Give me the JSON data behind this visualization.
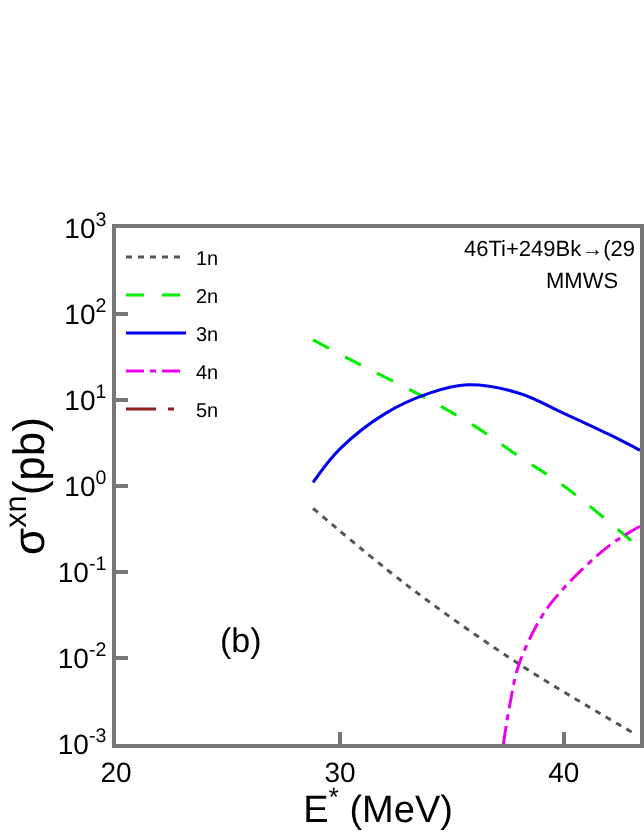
{
  "chart_data": {
    "type": "line",
    "xlabel": "E$^{*}$ (MeV)",
    "ylabel": "σ$^{xn}$(pb)",
    "log": "y",
    "xlim": [
      20,
      43.4
    ],
    "xticks": [
      20,
      30,
      40
    ],
    "ylim": [
      0.001,
      1000
    ],
    "yticks": [
      {
        "value": 0.001,
        "label": "10$^{-3}$"
      },
      {
        "value": 0.01,
        "label": "10$^{-2}$"
      },
      {
        "value": 0.1,
        "label": "10$^{-1}$"
      },
      {
        "value": 1,
        "label": "10$^{0}$"
      },
      {
        "value": 10,
        "label": "10$^{1}$"
      },
      {
        "value": 100,
        "label": "10$^{2}$"
      },
      {
        "value": 1000,
        "label": "10$^{3}$"
      }
    ],
    "legend": "top left",
    "annotations": [
      "46Ti+249Bk→(29",
      "MMWS",
      "(b)"
    ],
    "series": [
      {
        "name": "1n",
        "color": "#555555",
        "line_style": "dotted",
        "x": [
          28.8,
          33,
          38,
          43.2
        ],
        "values": [
          0.55,
          0.07,
          0.0085,
          0.0013
        ]
      },
      {
        "name": "2n",
        "color": "#00ee00",
        "line_style": "dashed",
        "x": [
          28.8,
          31,
          33.7,
          36,
          38,
          40,
          43.4
        ],
        "values": [
          50,
          25,
          11,
          5,
          2.2,
          1,
          0.19
        ]
      },
      {
        "name": "3n",
        "color": "#0000ee",
        "line_style": "solid",
        "x": [
          28.8,
          30,
          32,
          34,
          35.7,
          38,
          40,
          42,
          43.4
        ],
        "values": [
          1.1,
          2.7,
          6.9,
          12,
          15,
          12,
          7,
          4,
          2.6
        ]
      },
      {
        "name": "4n",
        "color": "#ee00ee",
        "line_style": "dashdot",
        "x": [
          37.3,
          37.6,
          38,
          39,
          40,
          42,
          43.4
        ],
        "values": [
          0.001,
          0.003,
          0.0085,
          0.03,
          0.065,
          0.2,
          0.34
        ]
      },
      {
        "name": "5n",
        "color": "#8b2323",
        "line_style": "longdashdot",
        "x": [
          null
        ],
        "values": [
          null
        ]
      }
    ]
  }
}
